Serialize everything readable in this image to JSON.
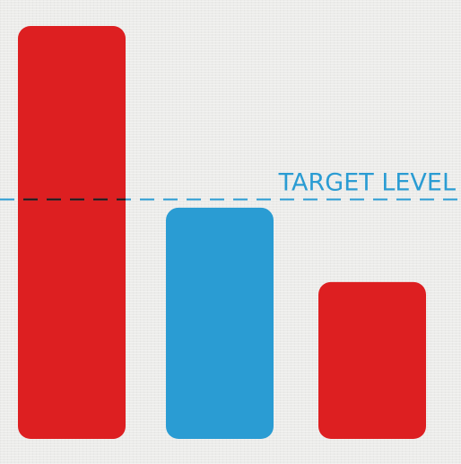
{
  "chart_data": {
    "type": "bar",
    "categories": [
      "",
      "",
      ""
    ],
    "values": [
      100,
      56,
      38
    ],
    "ylim": [
      0,
      100
    ],
    "grid": false,
    "bar_colors": [
      "#dd1f21",
      "#2a9cd3",
      "#dd1f21"
    ],
    "target": {
      "label": "TARGET LEVEL",
      "value": 58,
      "color": "#2a9cd3",
      "dash_color_over_bar": "#1a1a1a"
    }
  }
}
